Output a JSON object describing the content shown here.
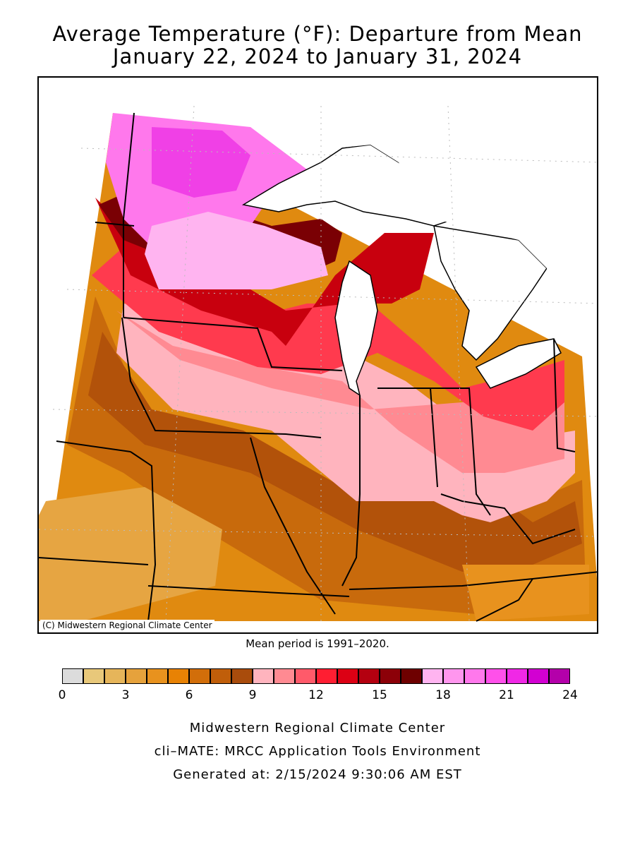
{
  "title": {
    "line1": "Average Temperature (°F): Departure from Mean",
    "line2": "January 22, 2024 to January 31, 2024"
  },
  "map": {
    "copyright": "(C) Midwestern Regional Climate Center",
    "mean_period": "Mean period is 1991–2020."
  },
  "legend": {
    "colors": [
      "#dcdcdc",
      "#e8c87a",
      "#e6b55a",
      "#e6a23c",
      "#e8921e",
      "#e88204",
      "#d26e0a",
      "#c05e0a",
      "#a94c0c",
      "#ffb4be",
      "#ff8a92",
      "#ff5a6a",
      "#ff1e32",
      "#dc0014",
      "#b40010",
      "#8c0008",
      "#6e0000",
      "#ffb4f0",
      "#ff96ee",
      "#ff78ec",
      "#ff50ea",
      "#f028e6",
      "#d200d2",
      "#b400aa"
    ],
    "ticks": [
      "0",
      "3",
      "6",
      "9",
      "12",
      "15",
      "18",
      "21",
      "24"
    ]
  },
  "footer": {
    "line1": "Midwestern Regional Climate Center",
    "line2": "cli–MATE: MRCC Application Tools Environment",
    "line3": "Generated at: 2/15/2024 9:30:06 AM EST"
  }
}
